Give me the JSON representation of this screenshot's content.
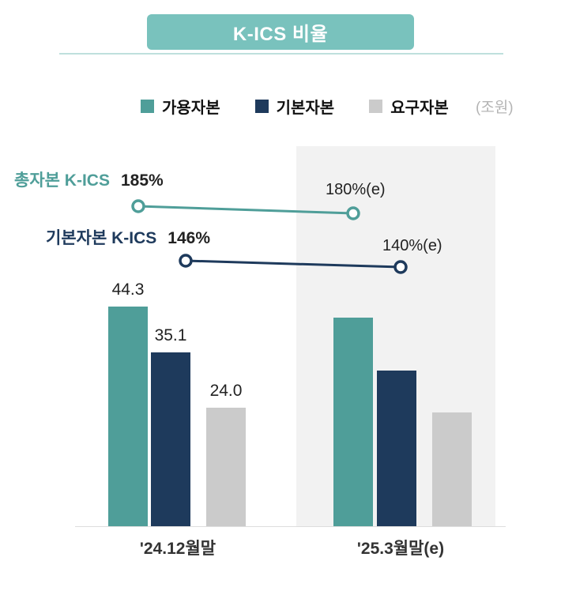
{
  "header": {
    "title": "K-ICS 비율"
  },
  "legend": {
    "items": [
      {
        "label": "가용자본",
        "color": "#4f9e99"
      },
      {
        "label": "기본자본",
        "color": "#1e3a5c"
      },
      {
        "label": "요구자본",
        "color": "#cbcbcb"
      }
    ],
    "unit": "(조원)"
  },
  "annotations": {
    "line1_name": "총자본 K-ICS",
    "line1_value1": "185%",
    "line1_value2": "180%(e)",
    "line2_name": "기본자본 K-ICS",
    "line2_value1": "146%",
    "line2_value2": "140%(e)"
  },
  "xaxis": {
    "labels": [
      "'24.12월말",
      "'25.3월말(e)"
    ]
  },
  "chart_data": {
    "type": "bar+line",
    "title": "K-ICS 비율",
    "unit": "조원",
    "categories": [
      "'24.12월말",
      "'25.3월말(e)"
    ],
    "bar_series": [
      {
        "name": "가용자본",
        "color": "#4f9e99",
        "values": [
          44.3,
          42.0
        ],
        "labels": [
          "44.3",
          null
        ]
      },
      {
        "name": "기본자본",
        "color": "#1e3a5c",
        "values": [
          35.1,
          31.5
        ],
        "labels": [
          "35.1",
          null
        ]
      },
      {
        "name": "요구자본",
        "color": "#cbcbcb",
        "values": [
          24.0,
          23.0
        ],
        "labels": [
          "24.0",
          null
        ]
      }
    ],
    "line_series": [
      {
        "name": "총자본 K-ICS",
        "color": "#4f9e99",
        "values": [
          185,
          180
        ],
        "labels": [
          "185%",
          "180%(e)"
        ]
      },
      {
        "name": "기본자본 K-ICS",
        "color": "#1e3a5c",
        "values": [
          146,
          140
        ],
        "labels": [
          "146%",
          "140%(e)"
        ]
      }
    ],
    "ylim": [
      0,
      50
    ],
    "grid": false,
    "legend_position": "top"
  }
}
